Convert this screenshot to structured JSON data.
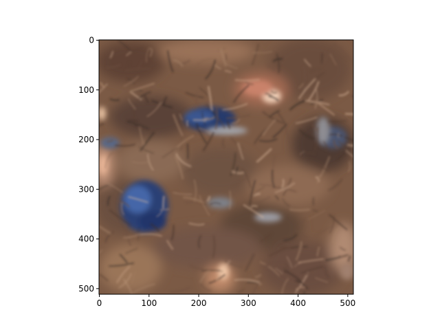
{
  "image": {
    "description_icon": "generated-texture-image",
    "palette": {
      "base": "#7b5a45",
      "dark": "#4f3a30",
      "light": "#b48a6a",
      "blue": "#2a3f75",
      "blue_light": "#4566a8",
      "highlight": "#e8c0a2",
      "gray": "#8d8c92"
    }
  },
  "axes": {
    "x_ticks": [
      {
        "label": "0",
        "value": 0
      },
      {
        "label": "100",
        "value": 100
      },
      {
        "label": "200",
        "value": 200
      },
      {
        "label": "300",
        "value": 300
      },
      {
        "label": "400",
        "value": 400
      },
      {
        "label": "500",
        "value": 500
      }
    ],
    "y_ticks": [
      {
        "label": "0",
        "value": 0
      },
      {
        "label": "100",
        "value": 100
      },
      {
        "label": "200",
        "value": 200
      },
      {
        "label": "300",
        "value": 300
      },
      {
        "label": "400",
        "value": 400
      },
      {
        "label": "500",
        "value": 500
      }
    ],
    "x_range": [
      0,
      512
    ],
    "y_range": [
      0,
      512
    ]
  }
}
